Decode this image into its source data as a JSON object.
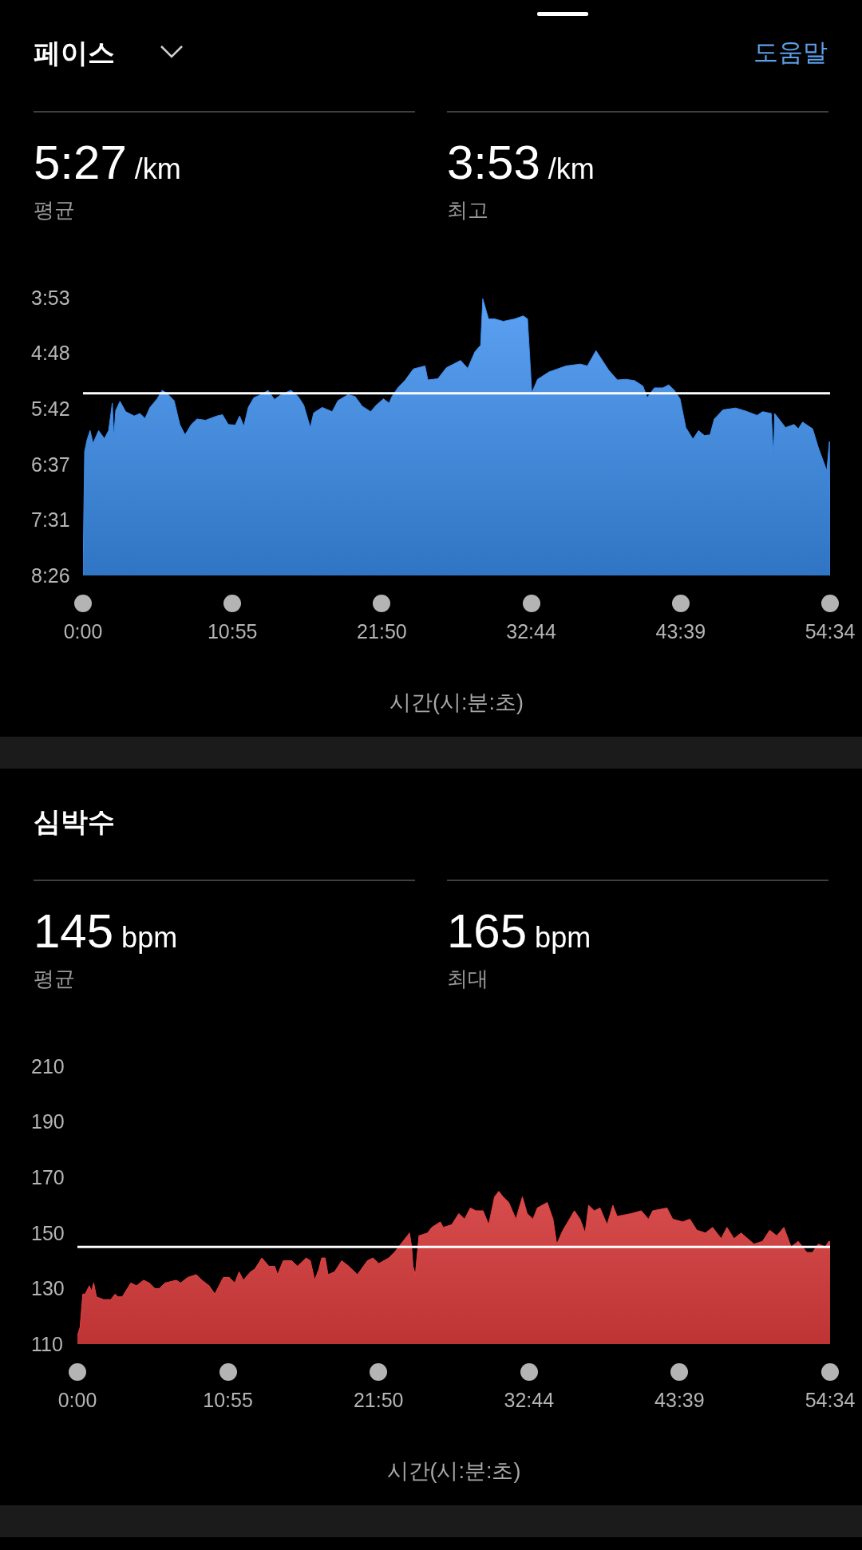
{
  "chart_data": [
    {
      "type": "area",
      "title": "페이스",
      "xlabel": "시간(시:분:초)",
      "annotations": [
        "5:27 /km",
        "평균",
        "3:53 /km",
        "최고",
        "도움말"
      ],
      "x": [
        0,
        0.12,
        0.31,
        0.52,
        0.73,
        1.14,
        1.56,
        1.87,
        2.14,
        2.25,
        2.39,
        2.7,
        3.12,
        3.74,
        4.16,
        4.53,
        4.89,
        5.41,
        5.78,
        6.14,
        6.66,
        7.07,
        7.45,
        7.91,
        8.32,
        8.95,
        9.78,
        10.19,
        10.61,
        11.13,
        11.44,
        11.75,
        12.07,
        12.48,
        13.0,
        13.52,
        13.98,
        14.46,
        15.19,
        15.71,
        16.12,
        16.6,
        16.85,
        17.47,
        18.2,
        18.62,
        19.35,
        19.87,
        20.39,
        21.01,
        21.43,
        21.95,
        22.36,
        22.57,
        22.99,
        23.51,
        24.13,
        24.98,
        25.19,
        25.92,
        26.54,
        27.58,
        28.1,
        28.62,
        29.04,
        29.2,
        29.62,
        30.07,
        30.7,
        31.53,
        32.16,
        32.47,
        32.78,
        33.2,
        34.03,
        35.28,
        36.32,
        36.84,
        37.47,
        38.4,
        39.03,
        39.65,
        40.28,
        40.9,
        41.21,
        41.73,
        42.36,
        42.78,
        43.19,
        43.61,
        44.03,
        44.55,
        44.96,
        45.38,
        45.8,
        46.11,
        46.74,
        47.67,
        48.4,
        49.23,
        49.65,
        50.27,
        50.44,
        50.52,
        51.31,
        51.94,
        52.25,
        52.56,
        53.29,
        53.71,
        54.33,
        54.52,
        54.567
      ],
      "values": [
        8.43,
        6.4,
        6.2,
        6.06,
        6.27,
        6.06,
        6.19,
        6.06,
        5.61,
        6.17,
        5.73,
        5.58,
        5.75,
        5.82,
        5.78,
        5.86,
        5.68,
        5.54,
        5.4,
        5.45,
        5.57,
        5.96,
        6.13,
        5.96,
        5.87,
        5.89,
        5.82,
        5.8,
        5.96,
        5.97,
        5.82,
        5.99,
        5.68,
        5.52,
        5.47,
        5.4,
        5.55,
        5.47,
        5.4,
        5.5,
        5.64,
        6.01,
        5.77,
        5.68,
        5.75,
        5.57,
        5.47,
        5.5,
        5.66,
        5.75,
        5.64,
        5.54,
        5.61,
        5.5,
        5.36,
        5.24,
        5.05,
        5.0,
        5.23,
        5.21,
        5.03,
        4.91,
        5.04,
        4.77,
        4.66,
        3.9,
        4.23,
        4.23,
        4.27,
        4.23,
        4.18,
        4.23,
        5.44,
        5.22,
        5.1,
        5.0,
        4.97,
        5.0,
        4.75,
        5.07,
        5.23,
        5.22,
        5.24,
        5.33,
        5.52,
        5.36,
        5.36,
        5.31,
        5.4,
        5.54,
        6.01,
        6.2,
        6.06,
        6.14,
        6.13,
        5.87,
        5.72,
        5.69,
        5.74,
        5.81,
        5.75,
        5.78,
        6.53,
        5.78,
        6.01,
        5.96,
        6.03,
        5.92,
        6.03,
        6.34,
        6.72,
        6.24,
        8.43
      ],
      "color": "#3a8eef",
      "xlim": [
        0,
        54.567
      ],
      "xticks": [
        {
          "value": 0,
          "label": "0:00"
        },
        {
          "value": 10.913,
          "label": "10:55"
        },
        {
          "value": 21.827,
          "label": "21:50"
        },
        {
          "value": 32.74,
          "label": "32:44"
        },
        {
          "value": 43.653,
          "label": "43:39"
        },
        {
          "value": 54.567,
          "label": "54:34"
        }
      ],
      "ylim": [
        8.433,
        3.883
      ],
      "yticks": [
        {
          "value": 3.883,
          "label": "3:53"
        },
        {
          "value": 4.793,
          "label": "4:48"
        },
        {
          "value": 5.703,
          "label": "5:42"
        },
        {
          "value": 6.613,
          "label": "6:37"
        },
        {
          "value": 7.523,
          "label": "7:31"
        },
        {
          "value": 8.433,
          "label": "8:26"
        }
      ],
      "ref_lines": [
        {
          "axis": "y",
          "value": 5.45,
          "color": "#ffffff"
        }
      ]
    },
    {
      "type": "area",
      "title": "심박수",
      "xlabel": "시간(시:분:초)",
      "annotations": [
        "145 bpm",
        "평균",
        "165 bpm",
        "최대"
      ],
      "x": [
        0,
        0.19,
        0.39,
        0.56,
        0.87,
        1.01,
        1.18,
        1.38,
        1.9,
        2.42,
        2.73,
        2.94,
        3.25,
        3.87,
        4.28,
        4.8,
        5.21,
        5.62,
        5.93,
        6.35,
        7.17,
        7.48,
        8.0,
        8.62,
        9.03,
        9.55,
        9.96,
        10.58,
        11.0,
        11.41,
        11.72,
        12.03,
        12.55,
        12.86,
        13.37,
        13.89,
        14.3,
        14.51,
        14.92,
        15.54,
        15.96,
        16.58,
        16.89,
        17.2,
        17.51,
        17.71,
        17.96,
        18.17,
        18.64,
        19.16,
        19.68,
        20.3,
        21.02,
        21.43,
        21.85,
        22.57,
        22.98,
        23.6,
        24.08,
        24.23,
        24.33,
        24.5,
        24.76,
        25.38,
        25.69,
        26.31,
        26.52,
        27.14,
        27.65,
        28.07,
        28.48,
        28.89,
        29.41,
        29.82,
        30.24,
        30.55,
        30.86,
        31.27,
        31.79,
        32.26,
        32.61,
        33.03,
        33.34,
        34.06,
        34.48,
        34.75,
        35.2,
        36.03,
        36.44,
        36.81,
        37.06,
        37.47,
        37.89,
        38.4,
        38.82,
        39.13,
        40.16,
        40.88,
        41.4,
        41.71,
        42.74,
        43.16,
        43.88,
        44.4,
        44.91,
        45.53,
        46.05,
        46.67,
        47.09,
        47.6,
        48.12,
        49.05,
        49.67,
        50.19,
        50.7,
        51.22,
        51.74,
        52.26,
        52.88,
        53.29,
        53.71,
        54.22,
        54.47,
        54.567
      ],
      "values": [
        113,
        116,
        128,
        128,
        131,
        129,
        132,
        127,
        126,
        126,
        128,
        127,
        127,
        132,
        131,
        133,
        132,
        130,
        130,
        132,
        133,
        132,
        134,
        135,
        133,
        131,
        128,
        134,
        134,
        132,
        136,
        133,
        136,
        137,
        141,
        138,
        138,
        135,
        140,
        140,
        138,
        141,
        140,
        133,
        137,
        141,
        141,
        135,
        136,
        140,
        138,
        135,
        140,
        141,
        139,
        141,
        143,
        147,
        150,
        145,
        138,
        135,
        149,
        150,
        152,
        154,
        152,
        153,
        157,
        155,
        159,
        158,
        158,
        153,
        163,
        165,
        163,
        161,
        155,
        163,
        157,
        155,
        159,
        161,
        155,
        146,
        151,
        158,
        155,
        150,
        160,
        158,
        159,
        153,
        160,
        156,
        157,
        158,
        155,
        158,
        159,
        155,
        154,
        155,
        151,
        150,
        152,
        148,
        152,
        148,
        150,
        146,
        147,
        151,
        149,
        152,
        145,
        147,
        143,
        143,
        146,
        145,
        147,
        147
      ],
      "color": "#e8403f",
      "xlim": [
        0,
        54.567
      ],
      "xticks": [
        {
          "value": 0,
          "label": "0:00"
        },
        {
          "value": 10.913,
          "label": "10:55"
        },
        {
          "value": 21.827,
          "label": "21:50"
        },
        {
          "value": 32.74,
          "label": "32:44"
        },
        {
          "value": 43.653,
          "label": "43:39"
        },
        {
          "value": 54.567,
          "label": "54:34"
        }
      ],
      "ylim": [
        110,
        210
      ],
      "yticks": [
        110,
        130,
        150,
        170,
        190,
        210
      ],
      "ref_lines": [
        {
          "axis": "y",
          "value": 145,
          "color": "#ffffff"
        }
      ]
    }
  ]
}
